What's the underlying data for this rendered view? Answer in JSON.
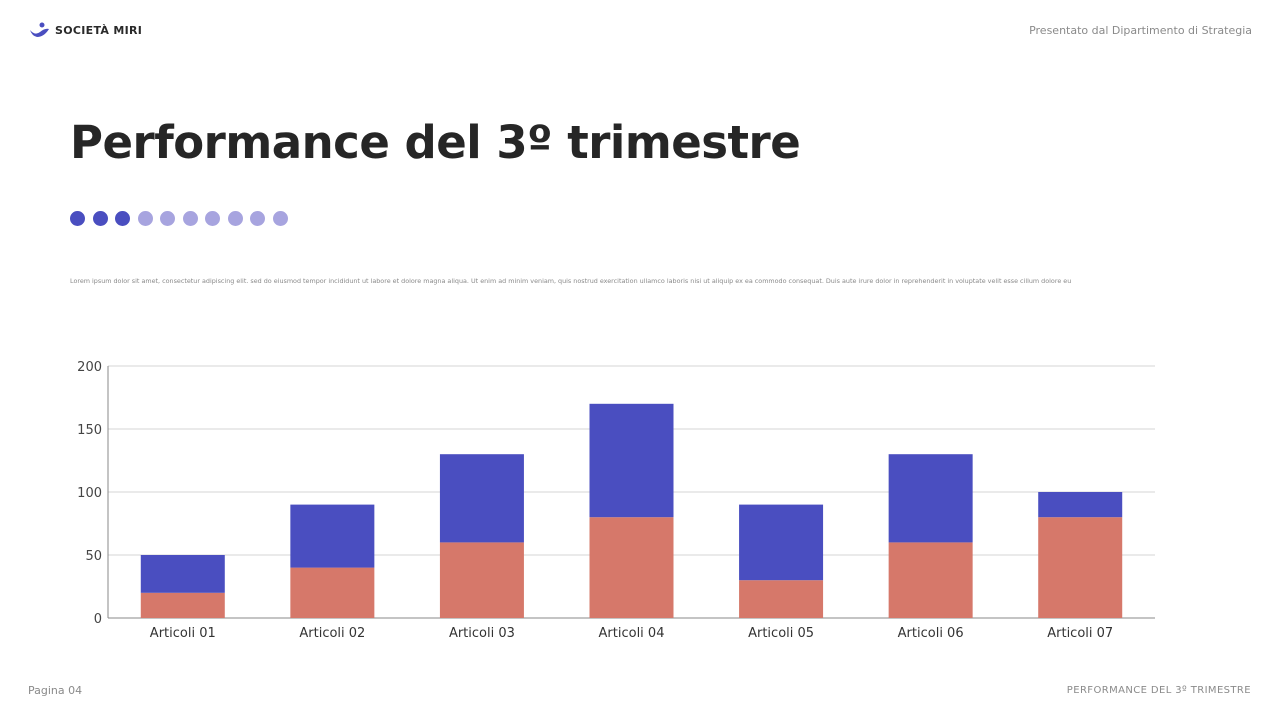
{
  "header": {
    "brand": "SOCIETÀ MIRI",
    "presenter": "Presentato dal Dipartimento di Strategia"
  },
  "title": "Performance del 3º trimestre",
  "progress_dots": {
    "active": 3,
    "total": 10,
    "active_color": "#4a4ec0",
    "inactive_color": "#a7a4df"
  },
  "description": "Lorem ipsum dolor sit amet, consectetur adipiscing elit. sed do eiusmod tempor incididunt ut labore et dolore magna aliqua. Ut enim ad minim veniam, quis nostrud exercitation ullamco laboris nisi ut aliquip ex ea commodo consequat. Duis aute irure dolor in reprehenderit in voluptate velit esse cillum dolore eu",
  "footer": {
    "page": "Pagina 04",
    "section": "PERFORMANCE DEL 3º TRIMESTRE"
  },
  "chart_data": {
    "type": "bar",
    "stacked": true,
    "categories": [
      "Articoli 01",
      "Articoli 02",
      "Articoli 03",
      "Articoli 04",
      "Articoli 05",
      "Articoli 06",
      "Articoli 07"
    ],
    "series": [
      {
        "values": [
          20,
          40,
          60,
          80,
          30,
          60,
          80
        ],
        "color": "#d6786a"
      },
      {
        "values": [
          30,
          50,
          70,
          90,
          60,
          70,
          20
        ],
        "color": "#4a4ec0"
      }
    ],
    "ylim": [
      0,
      200
    ],
    "yticks": [
      "0",
      "50",
      "100",
      "150",
      "200"
    ],
    "grid": true,
    "legend": "none"
  }
}
